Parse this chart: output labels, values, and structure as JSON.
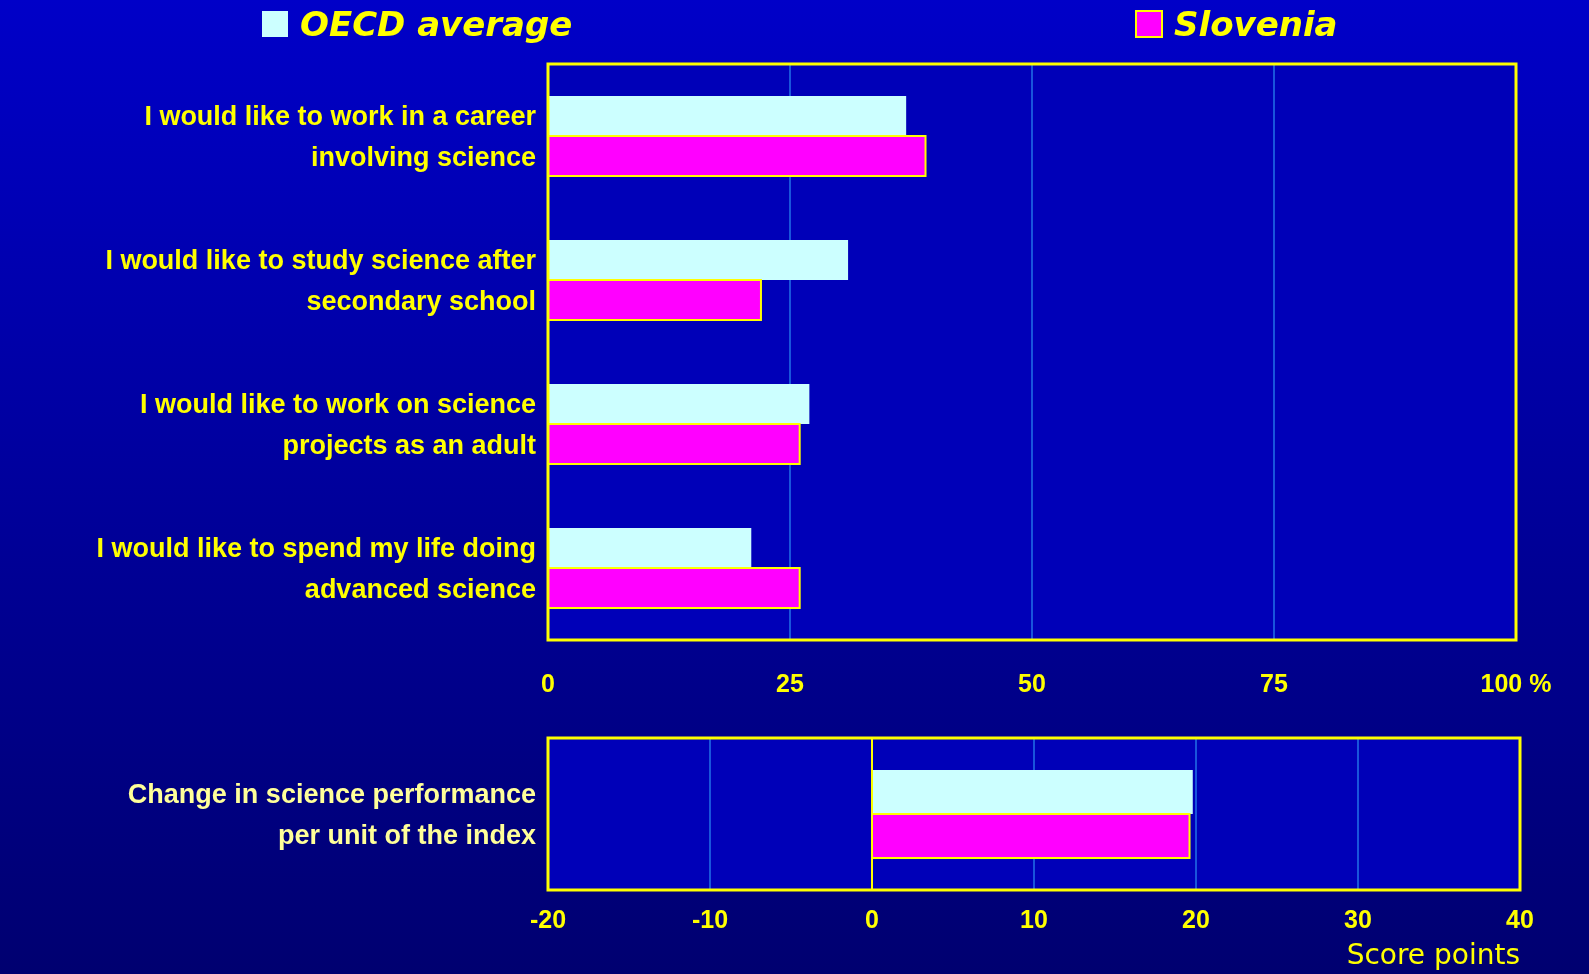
{
  "chart_data": [
    {
      "type": "bar",
      "orientation": "horizontal",
      "categories": [
        "I would like to work in a career\ninvolving science",
        "I would like to study science after\nsecondary school",
        "I would like to work on science\nprojects as an adult",
        "I would like to spend my life doing\nadvanced science"
      ],
      "series": [
        {
          "name": "OECD average",
          "color": "#ccffff",
          "values": [
            37,
            31,
            27,
            21
          ]
        },
        {
          "name": "Slovenia",
          "color": "#ff00ff",
          "values": [
            39,
            22,
            26,
            26
          ]
        }
      ],
      "xlim": [
        0,
        100
      ],
      "xticks": [
        0,
        25,
        50,
        75,
        {
          "value": 100,
          "label": "100 %"
        }
      ],
      "grid": "x",
      "legend": "top"
    },
    {
      "type": "bar",
      "orientation": "horizontal",
      "categories": [
        "Change in science performance\nper unit of the index"
      ],
      "series": [
        {
          "color": "#ccffff",
          "values": [
            19.8
          ]
        },
        {
          "color": "#ff00ff",
          "values": [
            19.6
          ]
        }
      ],
      "ref_lines": [
        {
          "axis": "x",
          "value": 0,
          "color": "#ffff00"
        }
      ],
      "xlim": [
        -20,
        40
      ],
      "xticks": [
        -20,
        -10,
        0,
        10,
        20,
        30,
        40
      ],
      "grid": "x",
      "xlabel": "Score points"
    }
  ]
}
